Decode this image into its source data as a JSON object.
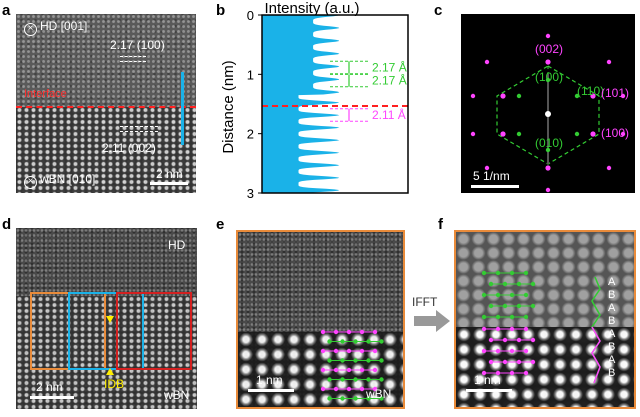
{
  "panels": {
    "a": {
      "label": "a",
      "top_label": "HD [001]",
      "bottom_label": "wBN [010]",
      "spacing_top": "2.17 (100)",
      "interface_label": "Interface",
      "spacing_bottom": "2.11 (002)",
      "scalebar": "2 nm"
    },
    "b": {
      "label": "b",
      "title": "Intensity (a.u.)",
      "ylabel": "Distance (nm)",
      "yticks": [
        "0",
        "1",
        "2",
        "3"
      ],
      "annotations": [
        "2.17 Å",
        "2.17 Å",
        "2.11 Å"
      ]
    },
    "c": {
      "label": "c",
      "spots": [
        "(002)",
        "(100)",
        "(1̅0)",
        "(101)",
        "(100)",
        "(0̅0)"
      ],
      "spot_labels": [
        "(002)",
        "(100)",
        "(110)",
        "(101)",
        "(100)",
        "(010)"
      ],
      "scalebar": "5 1/nm"
    },
    "d": {
      "label": "d",
      "top_label": "HD",
      "marker_label": "IDB",
      "bottom_label": "wBN",
      "scalebar": "2 nm"
    },
    "e": {
      "label": "e",
      "scalebar": "1 nm",
      "material": "wBN"
    },
    "arrow": {
      "label": "IFFT"
    },
    "f": {
      "label": "f",
      "stacking": [
        "A",
        "B",
        "A",
        "B",
        "A",
        "B",
        "A",
        "B"
      ],
      "scalebar": "1 nm"
    }
  },
  "colors": {
    "green": "#33cc33",
    "magenta": "#ff44ff",
    "cyan": "#1ab2e8",
    "red": "#ff2020",
    "orange": "#e98b3a",
    "yellow": "#ffee00",
    "profile_fill": "#1ab2e8"
  },
  "chart_data": {
    "type": "area",
    "title": "Intensity (a.u.)",
    "ylabel": "Distance (nm)",
    "ylim": [
      0,
      3
    ],
    "yticks": [
      0,
      1,
      2,
      3
    ],
    "annotations": [
      {
        "text": "2.17 Å",
        "from": 0.78,
        "to": 0.99
      },
      {
        "text": "2.17 Å",
        "from": 1.0,
        "to": 1.21
      },
      {
        "text": "2.11 Å",
        "from": 1.58,
        "to": 1.79
      }
    ],
    "interface_at": 1.35
  }
}
